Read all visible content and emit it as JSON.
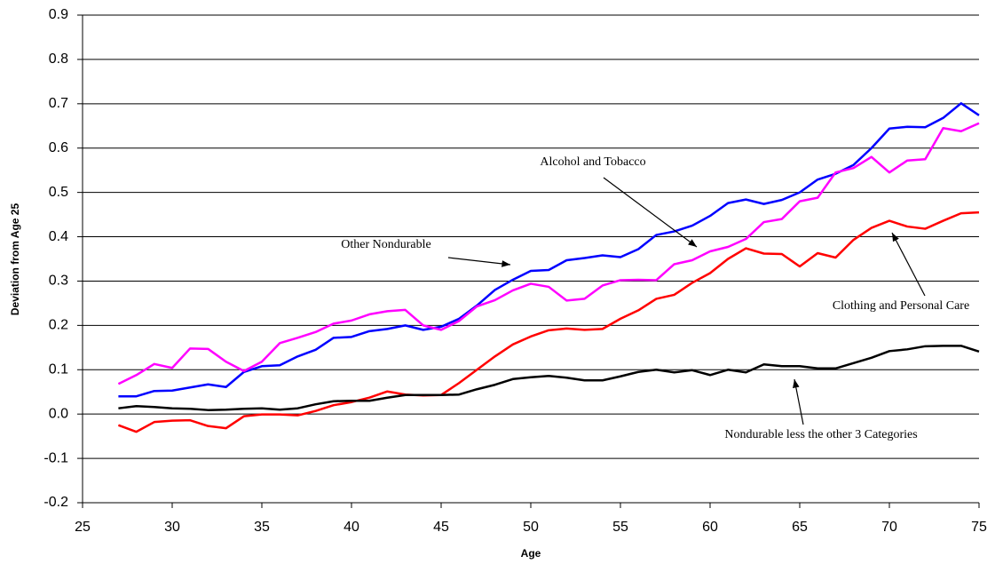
{
  "chart_data": {
    "type": "line",
    "xlabel": "Age",
    "ylabel": "Deviation from Age 25",
    "x": [
      27,
      28,
      29,
      30,
      31,
      32,
      33,
      34,
      35,
      36,
      37,
      38,
      39,
      40,
      41,
      42,
      43,
      44,
      45,
      46,
      47,
      48,
      49,
      50,
      51,
      52,
      53,
      54,
      55,
      56,
      57,
      58,
      59,
      60,
      61,
      62,
      63,
      64,
      65,
      66,
      67,
      68,
      69,
      70,
      71,
      72,
      73,
      74,
      75
    ],
    "xlim": [
      25,
      75
    ],
    "xticks": [
      25,
      30,
      35,
      40,
      45,
      50,
      55,
      60,
      65,
      70,
      75
    ],
    "ylim": [
      -0.2,
      0.9
    ],
    "yticks": [
      -0.2,
      -0.1,
      {
        "value": 0,
        "label": "0.0"
      },
      0.1,
      0.2,
      0.3,
      0.4,
      0.5,
      0.6,
      0.7,
      0.8,
      0.9
    ],
    "grid": true,
    "series": [
      {
        "name": "Other Nondurable",
        "color": "#0000ff",
        "values": [
          0.04,
          0.04,
          0.052,
          0.053,
          0.06,
          0.067,
          0.061,
          0.095,
          0.108,
          0.11,
          0.13,
          0.145,
          0.172,
          0.174,
          0.187,
          0.192,
          0.2,
          0.19,
          0.197,
          0.215,
          0.245,
          0.28,
          0.303,
          0.323,
          0.325,
          0.347,
          0.352,
          0.358,
          0.354,
          0.372,
          0.404,
          0.412,
          0.425,
          0.447,
          0.476,
          0.484,
          0.474,
          0.483,
          0.5,
          0.529,
          0.542,
          0.562,
          0.6,
          0.644,
          0.648,
          0.647,
          0.668,
          0.701,
          0.674
        ]
      },
      {
        "name": "Alcohol and Tobacco",
        "color": "#ff00ff",
        "values": [
          0.068,
          0.088,
          0.113,
          0.104,
          0.148,
          0.147,
          0.118,
          0.097,
          0.118,
          0.16,
          0.172,
          0.185,
          0.204,
          0.211,
          0.225,
          0.232,
          0.235,
          0.2,
          0.19,
          0.21,
          0.243,
          0.257,
          0.279,
          0.294,
          0.287,
          0.256,
          0.26,
          0.29,
          0.302,
          0.303,
          0.302,
          0.338,
          0.347,
          0.367,
          0.377,
          0.395,
          0.433,
          0.44,
          0.48,
          0.488,
          0.545,
          0.555,
          0.58,
          0.545,
          0.572,
          0.575,
          0.645,
          0.638,
          0.656
        ]
      },
      {
        "name": "Clothing and Personal Care",
        "color": "#ff0000",
        "values": [
          -0.025,
          -0.04,
          -0.018,
          -0.015,
          -0.014,
          -0.027,
          -0.032,
          -0.005,
          -0.001,
          -0.001,
          -0.003,
          0.007,
          0.02,
          0.027,
          0.037,
          0.051,
          0.044,
          0.042,
          0.043,
          0.07,
          0.1,
          0.13,
          0.157,
          0.175,
          0.189,
          0.193,
          0.19,
          0.192,
          0.215,
          0.234,
          0.26,
          0.269,
          0.296,
          0.318,
          0.35,
          0.374,
          0.362,
          0.361,
          0.333,
          0.363,
          0.353,
          0.393,
          0.42,
          0.436,
          0.423,
          0.418,
          0.436,
          0.453,
          0.455
        ]
      },
      {
        "name": "Nondurable less the other 3 Categories",
        "color": "#000000",
        "values": [
          0.013,
          0.018,
          0.016,
          0.013,
          0.012,
          0.009,
          0.01,
          0.012,
          0.013,
          0.01,
          0.013,
          0.022,
          0.029,
          0.03,
          0.03,
          0.037,
          0.043,
          0.043,
          0.043,
          0.044,
          0.056,
          0.066,
          0.079,
          0.083,
          0.086,
          0.082,
          0.076,
          0.076,
          0.085,
          0.095,
          0.1,
          0.094,
          0.099,
          0.088,
          0.1,
          0.094,
          0.112,
          0.108,
          0.108,
          0.103,
          0.103,
          0.115,
          0.127,
          0.142,
          0.146,
          0.153,
          0.154,
          0.154,
          0.141
        ]
      }
    ]
  }
}
